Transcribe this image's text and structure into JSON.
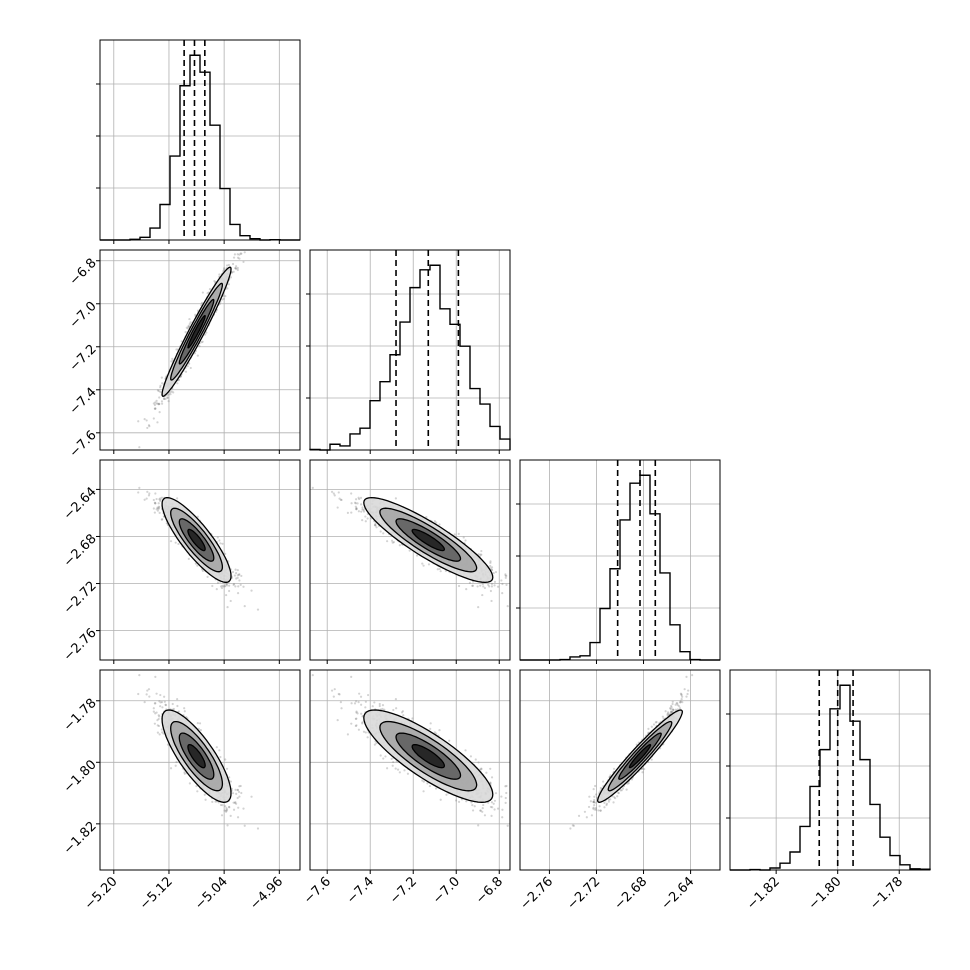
{
  "chart_data": {
    "type": "corner",
    "params": [
      {
        "range": [
          -5.22,
          -4.93
        ],
        "ticks": [
          "−5.20",
          "−5.12",
          "−5.04",
          "−4.96"
        ],
        "tick_values": [
          -5.2,
          -5.12,
          -5.04,
          -4.96
        ],
        "mean": -5.08,
        "sd": 0.025,
        "quantiles": [
          -5.098,
          -5.083,
          -5.068
        ]
      },
      {
        "range": [
          -7.68,
          -6.75
        ],
        "ticks": [
          "−7.6",
          "−7.4",
          "−7.2",
          "−7.0",
          "−6.8"
        ],
        "tick_values": [
          -7.6,
          -7.4,
          -7.2,
          -7.0,
          -6.8
        ],
        "mean": -7.13,
        "sd": 0.15,
        "quantiles": [
          -7.28,
          -7.13,
          -6.99
        ]
      },
      {
        "range": [
          -2.785,
          -2.615
        ],
        "ticks": [
          "−2.76",
          "−2.72",
          "−2.68",
          "−2.64"
        ],
        "tick_values": [
          -2.76,
          -2.72,
          -2.68,
          -2.64
        ],
        "mean": -2.683,
        "sd": 0.018,
        "quantiles": [
          -2.702,
          -2.683,
          -2.67
        ]
      },
      {
        "range": [
          -1.835,
          -1.77
        ],
        "ticks": [
          "−1.82",
          "−1.80",
          "−1.78"
        ],
        "tick_values": [
          -1.82,
          -1.8,
          -1.78
        ],
        "mean": -1.798,
        "sd": 0.0075,
        "quantiles": [
          -1.806,
          -1.8,
          -1.795
        ]
      }
    ],
    "hist_bins": 20,
    "grid": true,
    "colors": {
      "line": "#000000",
      "grid": "#b0b0b0",
      "points": "#808080"
    }
  }
}
